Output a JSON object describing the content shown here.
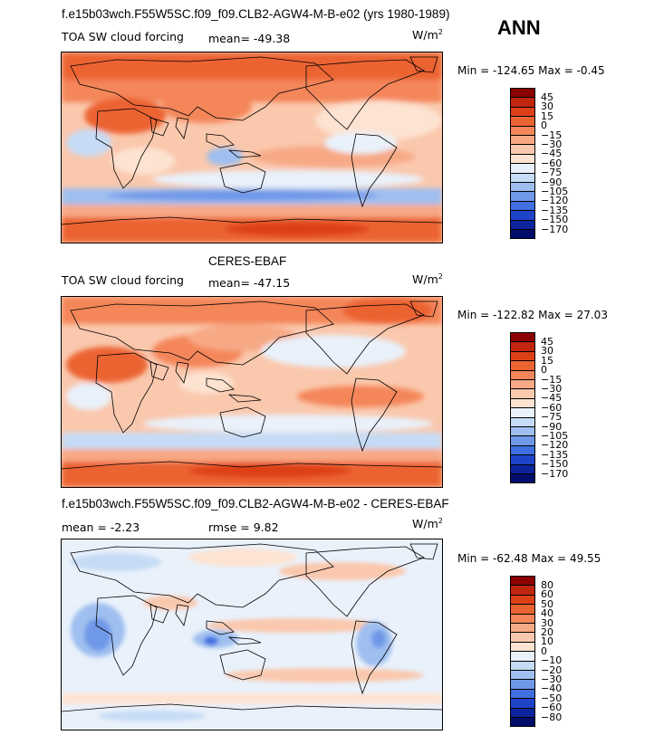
{
  "header": {
    "case_title": "f.e15b03wch.F55W5SC.f09_f09.CLB2-AGW4-M-B-e02 (yrs 1980-1989)",
    "season": "ANN"
  },
  "panels": [
    {
      "title": "",
      "variable": "TOA SW cloud forcing",
      "stat1": "mean=  -49.38",
      "stat2": "",
      "units": "W/m",
      "units_sup": "2",
      "minmax": "Min = -124.65 Max =   -0.45",
      "colorbar": {
        "labels": [
          "45",
          "30",
          "15",
          "0",
          "−15",
          "−30",
          "−45",
          "−60",
          "−75",
          "−90",
          "−105",
          "−120",
          "−135",
          "−150",
          "−170"
        ],
        "colors": [
          "#8b0000",
          "#c1260e",
          "#dd4016",
          "#ec6332",
          "#f4865a",
          "#f7a985",
          "#fac8ad",
          "#fde3d1",
          "#e9f1fb",
          "#c6dbf5",
          "#9fbff0",
          "#6f98e8",
          "#3f6fe0",
          "#1e43c8",
          "#0c249b",
          "#020d6b"
        ]
      }
    },
    {
      "title": "CERES-EBAF",
      "variable": "TOA SW cloud forcing",
      "stat1": "mean=  -47.15",
      "stat2": "",
      "units": "W/m",
      "units_sup": "2",
      "minmax": "Min = -122.82 Max =   27.03",
      "colorbar": {
        "labels": [
          "45",
          "30",
          "15",
          "0",
          "−15",
          "−30",
          "−45",
          "−60",
          "−75",
          "−90",
          "−105",
          "−120",
          "−135",
          "−150",
          "−170"
        ],
        "colors": [
          "#8b0000",
          "#c1260e",
          "#dd4016",
          "#ec6332",
          "#f4865a",
          "#f7a985",
          "#fac8ad",
          "#fde3d1",
          "#e9f1fb",
          "#c6dbf5",
          "#9fbff0",
          "#6f98e8",
          "#3f6fe0",
          "#1e43c8",
          "#0c249b",
          "#020d6b"
        ]
      }
    },
    {
      "title": "f.e15b03wch.F55W5SC.f09_f09.CLB2-AGW4-M-B-e02 - CERES-EBAF",
      "variable": "",
      "stat1": "mean =  -2.23",
      "stat2": "rmse =    9.82",
      "units": "W/m",
      "units_sup": "2",
      "minmax": "Min =  -62.48 Max =   49.55",
      "colorbar": {
        "labels": [
          "80",
          "60",
          "50",
          "40",
          "30",
          "20",
          "10",
          "0",
          "−10",
          "−20",
          "−30",
          "−40",
          "−50",
          "−60",
          "−80"
        ],
        "colors": [
          "#8b0000",
          "#c1260e",
          "#dd4016",
          "#ec6332",
          "#f4865a",
          "#f7a985",
          "#fac8ad",
          "#fde3d1",
          "#e9f1fb",
          "#c6dbf5",
          "#9fbff0",
          "#6f98e8",
          "#3f6fe0",
          "#1e43c8",
          "#0c249b",
          "#020d6b"
        ]
      }
    }
  ]
}
